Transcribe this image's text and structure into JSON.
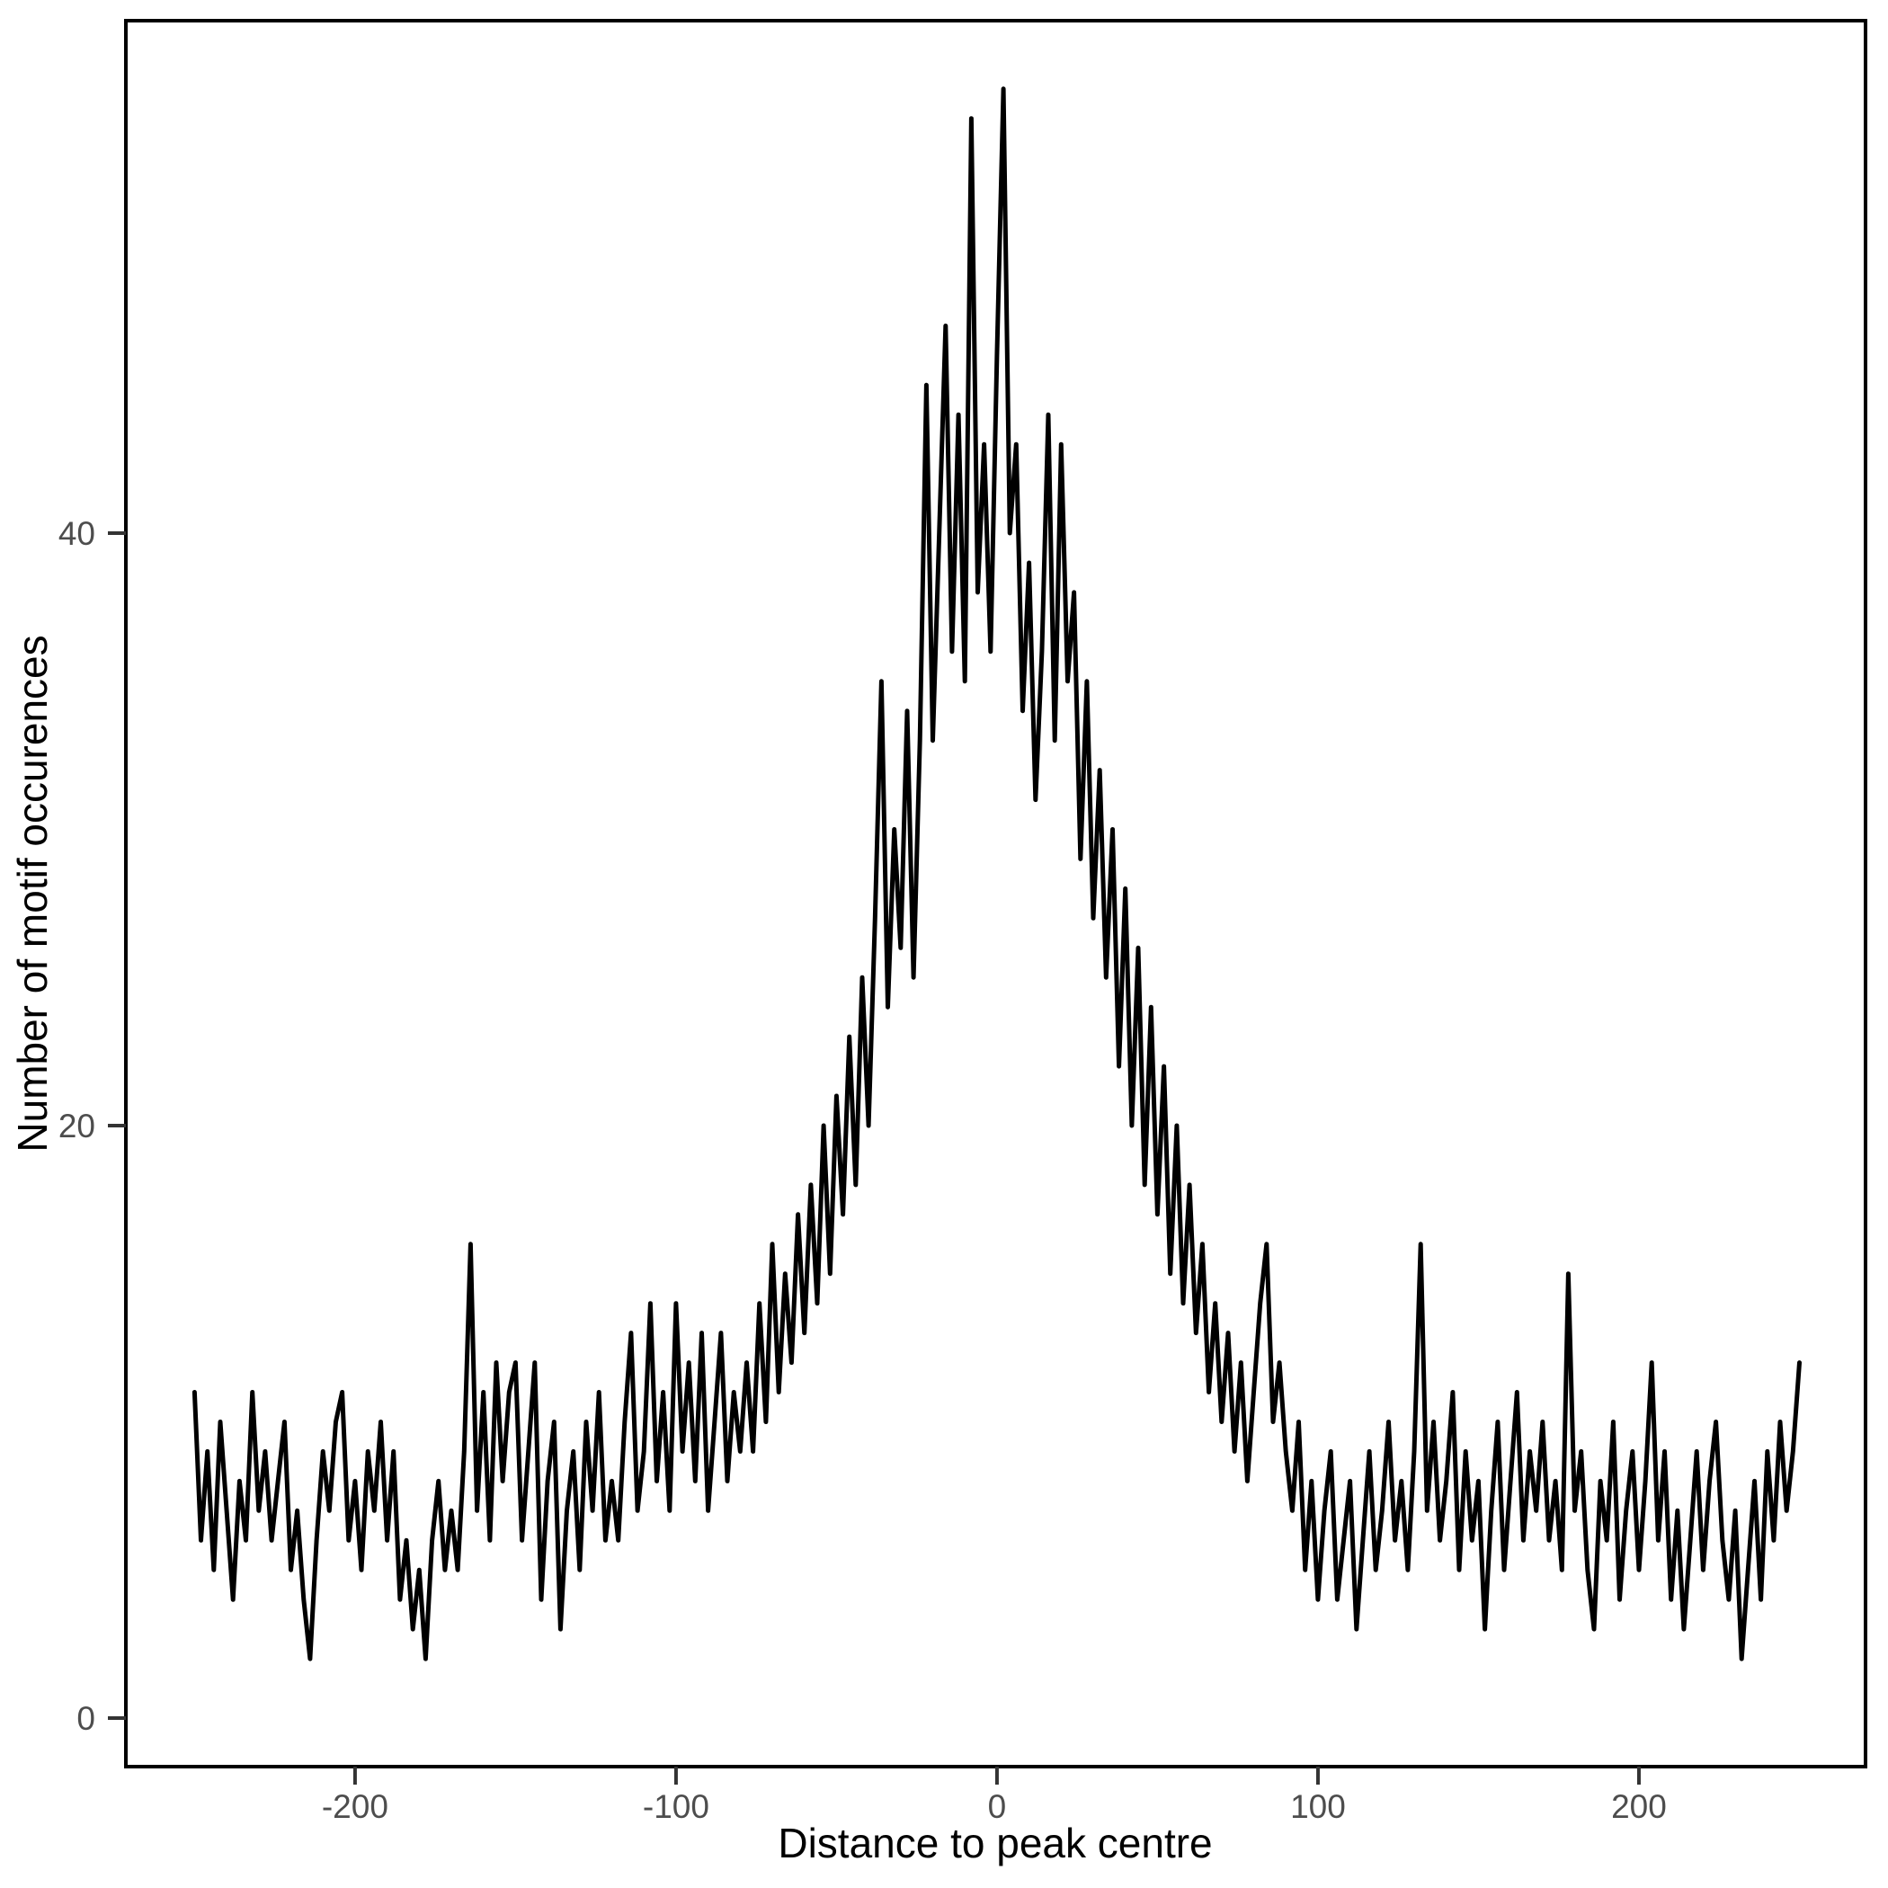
{
  "figure": {
    "background": "#ffffff",
    "line_color": "#000000",
    "tick_label_color": "#4d4d4d",
    "axis_title_color": "#000000"
  },
  "chart_data": {
    "type": "line",
    "title": "",
    "xlabel": "Distance to peak centre",
    "ylabel": "Number of motif occurences",
    "legend": null,
    "grid": false,
    "x_ticks": [
      "-200",
      "-100",
      "0",
      "100",
      "200"
    ],
    "x_tick_values": [
      -200,
      -100,
      0,
      100,
      200
    ],
    "y_ticks": [
      "0",
      "20",
      "40"
    ],
    "y_tick_values": [
      0,
      20,
      40
    ],
    "xlim": [
      -271.4,
      270.6
    ],
    "ylim": [
      -1.64,
      57.3
    ],
    "series": [
      {
        "name": "motif occurrences",
        "x_start": -250,
        "x_step": 2,
        "values": [
          11,
          6,
          9,
          5,
          10,
          7,
          4,
          8,
          6,
          11,
          7,
          9,
          6,
          8,
          10,
          5,
          7,
          4,
          2,
          6,
          9,
          7,
          10,
          11,
          6,
          8,
          5,
          9,
          7,
          10,
          6,
          9,
          4,
          6,
          3,
          5,
          2,
          6,
          8,
          5,
          7,
          5,
          9,
          16,
          7,
          11,
          6,
          12,
          8,
          11,
          12,
          6,
          9,
          12,
          4,
          8,
          10,
          3,
          7,
          9,
          5,
          10,
          7,
          11,
          6,
          8,
          6,
          10,
          13,
          7,
          9,
          14,
          8,
          11,
          7,
          14,
          9,
          12,
          8,
          13,
          7,
          10,
          13,
          8,
          11,
          9,
          12,
          9,
          14,
          10,
          16,
          11,
          15,
          12,
          17,
          13,
          18,
          14,
          20,
          15,
          21,
          17,
          23,
          18,
          25,
          20,
          27,
          35,
          24,
          30,
          26,
          34,
          25,
          33,
          45,
          33,
          40,
          47,
          36,
          44,
          35,
          54,
          38,
          43,
          36,
          46,
          55,
          40,
          43,
          34,
          39,
          31,
          36,
          44,
          33,
          43,
          35,
          38,
          29,
          35,
          27,
          32,
          25,
          30,
          22,
          28,
          20,
          26,
          18,
          24,
          17,
          22,
          15,
          20,
          14,
          18,
          13,
          16,
          11,
          14,
          10,
          13,
          9,
          12,
          8,
          11,
          14,
          16,
          10,
          12,
          9,
          7,
          10,
          5,
          8,
          4,
          7,
          9,
          4,
          6,
          8,
          3,
          6,
          9,
          5,
          7,
          10,
          6,
          8,
          5,
          9,
          16,
          7,
          10,
          6,
          8,
          11,
          5,
          9,
          6,
          8,
          3,
          7,
          10,
          5,
          8,
          11,
          6,
          9,
          7,
          10,
          6,
          8,
          5,
          15,
          7,
          9,
          5,
          3,
          8,
          6,
          10,
          4,
          7,
          9,
          5,
          8,
          12,
          6,
          9,
          4,
          7,
          3,
          6,
          9,
          5,
          8,
          10,
          6,
          4,
          7,
          2,
          5,
          8,
          4,
          9,
          6,
          10,
          7,
          9,
          12
        ]
      }
    ]
  }
}
